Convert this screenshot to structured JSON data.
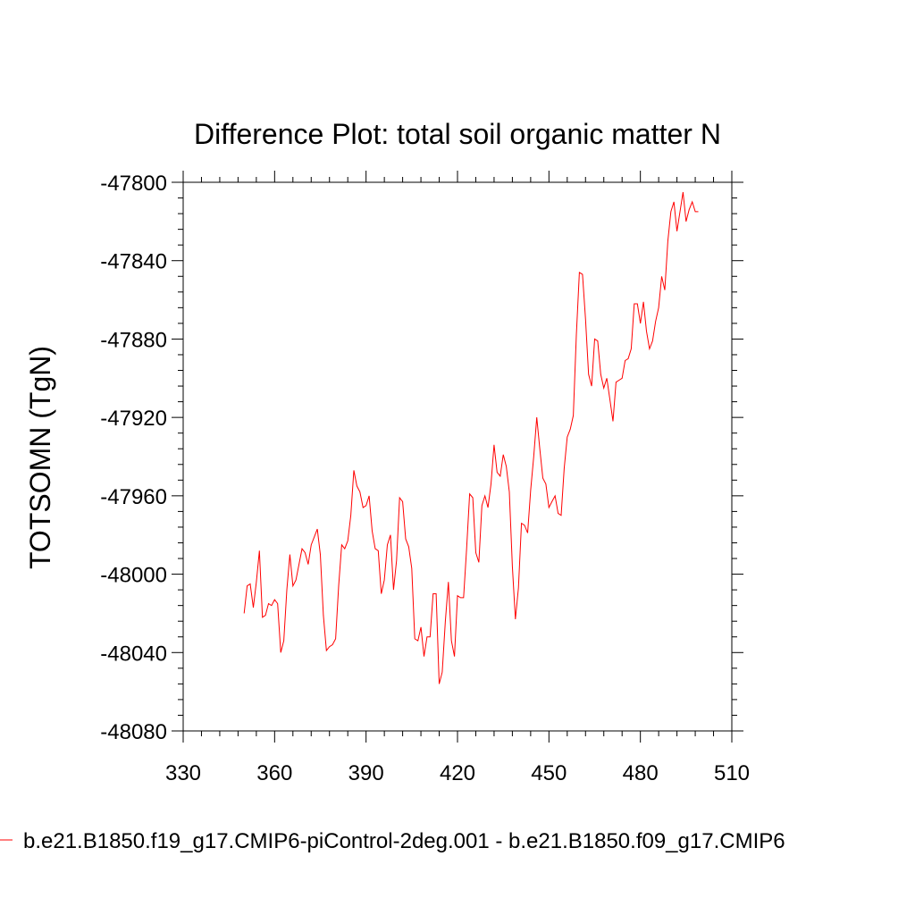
{
  "chart_data": {
    "type": "line",
    "title": "Difference Plot: total soil organic matter N",
    "ylabel": "TOTSOMN  (TgN)",
    "xlabel": "",
    "xlim": [
      330,
      510
    ],
    "ylim": [
      -48080,
      -47800
    ],
    "xticks": [
      330,
      360,
      390,
      420,
      450,
      480,
      510
    ],
    "yticks": [
      -47800,
      -47840,
      -47880,
      -47920,
      -47960,
      -48000,
      -48040,
      -48080
    ],
    "xtick_labels": [
      "330",
      "360",
      "390",
      "420",
      "450",
      "480",
      "510"
    ],
    "ytick_labels": [
      "-47800",
      "-47840",
      "-47880",
      "-47920",
      "-47960",
      "-48000",
      "-48040",
      "-48080"
    ],
    "series": [
      {
        "name": "b.e21.B1850.f19_g17.CMIP6-piControl-2deg.001 - b.e21.B1850.f09_g17.CMIP6",
        "color": "#ff0000",
        "x": [
          350,
          351,
          352,
          353,
          354,
          355,
          356,
          357,
          358,
          359,
          360,
          361,
          362,
          363,
          364,
          365,
          366,
          367,
          368,
          369,
          370,
          371,
          372,
          373,
          374,
          375,
          376,
          377,
          378,
          379,
          380,
          381,
          382,
          383,
          384,
          385,
          386,
          387,
          388,
          389,
          390,
          391,
          392,
          393,
          394,
          395,
          396,
          397,
          398,
          399,
          400,
          401,
          402,
          403,
          404,
          405,
          406,
          407,
          408,
          409,
          410,
          411,
          412,
          413,
          414,
          415,
          416,
          417,
          418,
          419,
          420,
          421,
          422,
          423,
          424,
          425,
          426,
          427,
          428,
          429,
          430,
          431,
          432,
          433,
          434,
          435,
          436,
          437,
          438,
          439,
          440,
          441,
          442,
          443,
          444,
          445,
          446,
          447,
          448,
          449,
          450,
          451,
          452,
          453,
          454,
          455,
          456,
          457,
          458,
          459,
          460,
          461,
          462,
          463,
          464,
          465,
          466,
          467,
          468,
          469,
          470,
          471,
          472,
          473,
          474,
          475,
          476,
          477,
          478,
          479,
          480,
          481,
          482,
          483,
          484,
          485,
          486,
          487,
          488,
          489,
          490,
          491,
          492,
          493,
          494,
          495,
          496,
          497,
          498,
          499
        ],
        "y": [
          -48020,
          -48006,
          -48005,
          -48017,
          -48004,
          -47988,
          -48022,
          -48021,
          -48015,
          -48016,
          -48013,
          -48015,
          -48040,
          -48034,
          -48008,
          -47990,
          -48006,
          -48003,
          -47995,
          -47987,
          -47989,
          -47995,
          -47985,
          -47981,
          -47977,
          -47990,
          -48021,
          -48039,
          -48037,
          -48036,
          -48033,
          -48006,
          -47985,
          -47987,
          -47983,
          -47970,
          -47947,
          -47955,
          -47958,
          -47966,
          -47965,
          -47960,
          -47978,
          -47987,
          -47988,
          -48010,
          -48003,
          -47985,
          -47980,
          -48008,
          -47993,
          -47961,
          -47963,
          -47982,
          -47986,
          -47997,
          -48033,
          -48034,
          -48027,
          -48042,
          -48032,
          -48032,
          -48010,
          -48010,
          -48056,
          -48050,
          -48024,
          -48004,
          -48034,
          -48042,
          -48011,
          -48012,
          -48012,
          -47987,
          -47959,
          -47961,
          -47989,
          -47994,
          -47965,
          -47960,
          -47966,
          -47954,
          -47934,
          -47948,
          -47950,
          -47939,
          -47945,
          -47958,
          -47996,
          -48023,
          -48007,
          -47974,
          -47975,
          -47979,
          -47957,
          -47940,
          -47920,
          -47936,
          -47951,
          -47954,
          -47966,
          -47963,
          -47960,
          -47969,
          -47970,
          -47946,
          -47930,
          -47926,
          -47919,
          -47878,
          -47846,
          -47847,
          -47870,
          -47898,
          -47904,
          -47880,
          -47881,
          -47898,
          -47905,
          -47900,
          -47911,
          -47922,
          -47902,
          -47901,
          -47900,
          -47891,
          -47890,
          -47885,
          -47862,
          -47862,
          -47872,
          -47861,
          -47876,
          -47885,
          -47881,
          -47871,
          -47864,
          -47848,
          -47855,
          -47830,
          -47815,
          -47810,
          -47825,
          -47815,
          -47805,
          -47820,
          -47814,
          -47810,
          -47815,
          -47815
        ]
      }
    ],
    "legend": {
      "placement": "bottom-left",
      "label": "b.e21.B1850.f19_g17.CMIP6-piControl-2deg.001 - b.e21.B1850.f09_g17.CMIP6"
    }
  }
}
